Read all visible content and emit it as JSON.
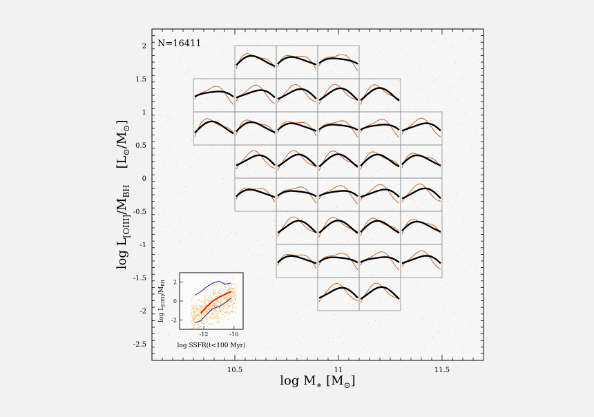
{
  "chart_data": {
    "type": "scatter",
    "annotation": "N=16411",
    "xlabel": "log M",
    "xlabel_sub": "∗",
    "xlabel_unit_open": " [M",
    "xlabel_unit_sub": "⊙",
    "xlabel_unit_close": "]",
    "ylabel": "log L",
    "ylabel_sub": "[OIII]",
    "ylabel_mid": "/M",
    "ylabel_sub2": "BH",
    "ylabel_unit_open": "    [L",
    "ylabel_unit_sub": "⊙",
    "ylabel_unit_mid": "/M",
    "ylabel_unit_sub2": "⊙",
    "ylabel_unit_close": "]",
    "xlim": [
      10.1,
      11.7
    ],
    "ylim": [
      -2.75,
      2.25
    ],
    "x_ticks": [
      "10.5",
      "11",
      "11.5"
    ],
    "y_ticks": [
      "2",
      "1.5",
      "1",
      "0.5",
      "0",
      "-0.5",
      "-1",
      "-1.5",
      "-2",
      "-2.5"
    ],
    "grid": false,
    "panel_width_dex": 0.2,
    "panel_height_dex": 0.5,
    "panels": [
      {
        "x": 10.5,
        "y": 1.5
      },
      {
        "x": 10.7,
        "y": 1.5
      },
      {
        "x": 10.9,
        "y": 1.5
      },
      {
        "x": 10.3,
        "y": 1.0
      },
      {
        "x": 10.5,
        "y": 1.0
      },
      {
        "x": 10.7,
        "y": 1.0
      },
      {
        "x": 10.9,
        "y": 1.0
      },
      {
        "x": 11.1,
        "y": 1.0
      },
      {
        "x": 10.3,
        "y": 0.5
      },
      {
        "x": 10.5,
        "y": 0.5
      },
      {
        "x": 10.7,
        "y": 0.5
      },
      {
        "x": 10.9,
        "y": 0.5
      },
      {
        "x": 11.1,
        "y": 0.5
      },
      {
        "x": 11.3,
        "y": 0.5
      },
      {
        "x": 10.5,
        "y": 0.0
      },
      {
        "x": 10.7,
        "y": 0.0
      },
      {
        "x": 10.9,
        "y": 0.0
      },
      {
        "x": 11.1,
        "y": 0.0
      },
      {
        "x": 11.3,
        "y": 0.0
      },
      {
        "x": 10.5,
        "y": -0.5
      },
      {
        "x": 10.7,
        "y": -0.5
      },
      {
        "x": 10.9,
        "y": -0.5
      },
      {
        "x": 11.1,
        "y": -0.5
      },
      {
        "x": 11.3,
        "y": -0.5
      },
      {
        "x": 10.7,
        "y": -1.0
      },
      {
        "x": 10.9,
        "y": -1.0
      },
      {
        "x": 11.1,
        "y": -1.0
      },
      {
        "x": 11.3,
        "y": -1.0
      },
      {
        "x": 10.7,
        "y": -1.5
      },
      {
        "x": 10.9,
        "y": -1.5
      },
      {
        "x": 11.1,
        "y": -1.5
      },
      {
        "x": 11.3,
        "y": -1.5
      },
      {
        "x": 10.9,
        "y": -2.0
      },
      {
        "x": 11.1,
        "y": -2.0
      }
    ],
    "inset": {
      "xlabel": "log SSFR(t<100 Myr)",
      "ylabel": "log L",
      "ylabel_sub": "[OIII]",
      "ylabel_mid": "/M",
      "ylabel_sub2": "BH",
      "xlim": [
        -13.6,
        -9.4
      ],
      "ylim": [
        -3.0,
        3.0
      ],
      "x_ticks": [
        -12,
        -10
      ],
      "y_ticks": [
        2,
        0,
        -2
      ],
      "series": [
        {
          "color": "#e8201a",
          "x": [
            -12.2,
            -11.8,
            -11.4,
            -11.0,
            -10.6,
            -10.2
          ],
          "y": [
            -1.3,
            -0.6,
            0.0,
            0.4,
            0.7,
            1.0
          ]
        },
        {
          "color": "#2a2ab8",
          "x": [
            -12.6,
            -12.2,
            -11.8,
            -11.4,
            -11.0,
            -10.6,
            -10.2
          ],
          "y": [
            0.6,
            1.0,
            1.5,
            1.9,
            2.1,
            1.8,
            1.9
          ]
        },
        {
          "color": "#2a2ab8",
          "x": [
            -12.6,
            -12.2,
            -11.8,
            -11.4,
            -11.0,
            -10.6,
            -10.2
          ],
          "y": [
            -2.3,
            -2.1,
            -1.4,
            -0.8,
            -0.6,
            -0.2,
            0.3
          ]
        }
      ]
    },
    "colors": {
      "frame": "#000000",
      "panel_border": "#888888",
      "black_curve": "#000000",
      "orange_curve": "#c8642a",
      "scatter": "#9bc6c6",
      "inset_scatter": "#f3b23c"
    }
  }
}
